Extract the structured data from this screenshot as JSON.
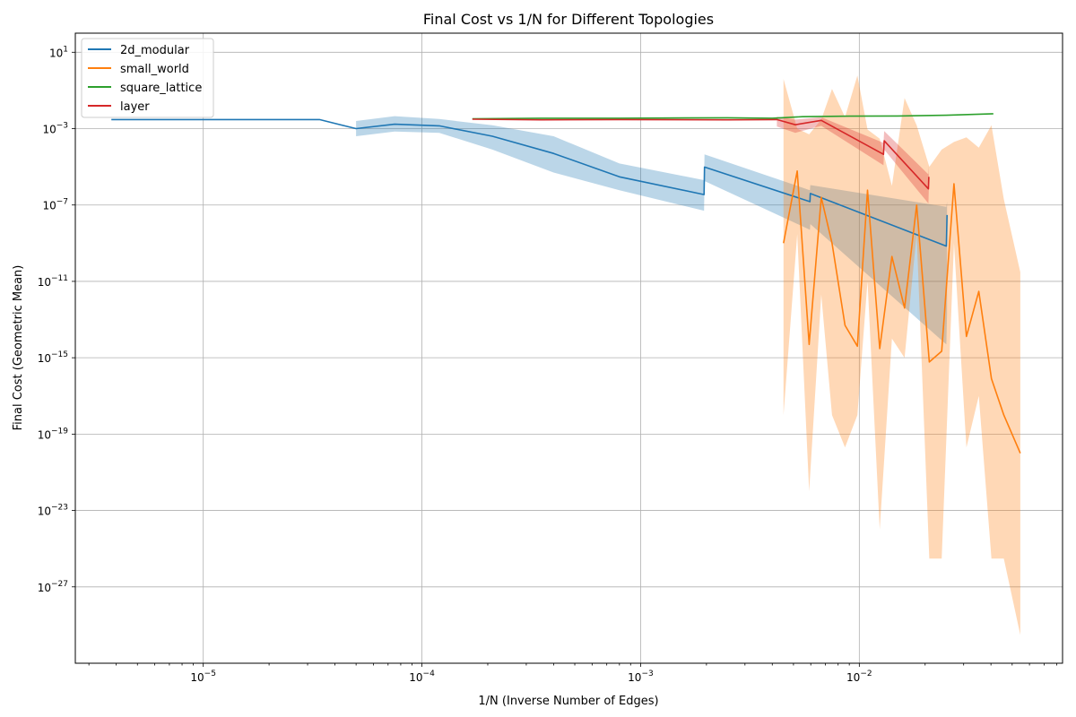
{
  "chart_data": {
    "type": "line",
    "title": "Final Cost vs 1/N for Different Topologies",
    "xlabel": "1/N (Inverse Number of Edges)",
    "ylabel": "Final Cost (Geometric Mean)",
    "xscale": "log",
    "yscale": "log",
    "xlim": [
      2.6e-06,
      0.085
    ],
    "ylim": [
      1e-31,
      100.0
    ],
    "x_ticks": [
      {
        "value": 1e-05,
        "base": "10",
        "exp": "−5"
      },
      {
        "value": 0.0001,
        "base": "10",
        "exp": "−4"
      },
      {
        "value": 0.001,
        "base": "10",
        "exp": "−3"
      },
      {
        "value": 0.01,
        "base": "10",
        "exp": "−2"
      }
    ],
    "y_ticks": [
      {
        "value": 10.0,
        "base": "10",
        "exp": "1"
      },
      {
        "value": 0.001,
        "base": "10",
        "exp": "−3"
      },
      {
        "value": 1e-07,
        "base": "10",
        "exp": "−7"
      },
      {
        "value": 1e-11,
        "base": "10",
        "exp": "−11"
      },
      {
        "value": 1e-15,
        "base": "10",
        "exp": "−15"
      },
      {
        "value": 1e-19,
        "base": "10",
        "exp": "−19"
      },
      {
        "value": 1e-23,
        "base": "10",
        "exp": "−23"
      },
      {
        "value": 1e-27,
        "base": "10",
        "exp": "−27"
      }
    ],
    "grid": true,
    "legend_position": "upper-left",
    "series": [
      {
        "name": "2d_modular",
        "color": "#1f77b4",
        "x": [
          3.8e-06,
          3.4e-05,
          5e-05,
          7.5e-05,
          0.00012,
          0.00021,
          0.0004,
          0.0008,
          0.00195,
          0.00196,
          0.00595,
          0.00597,
          0.025,
          0.0252
        ],
        "y": [
          0.003,
          0.003,
          0.001,
          0.0017,
          0.0014,
          0.0004,
          5e-05,
          3e-06,
          3.5e-07,
          9.7e-06,
          1.5e-07,
          4e-07,
          7e-10,
          3e-08
        ],
        "band_x": [
          5e-05,
          7.5e-05,
          0.00012,
          0.00021,
          0.0004,
          0.0008,
          0.00195,
          0.00196,
          0.00595,
          0.00597,
          0.025,
          0.0252
        ],
        "band_low": [
          0.0004,
          0.0007,
          0.0006,
          8e-05,
          5e-06,
          6e-07,
          5e-08,
          1.8e-06,
          5e-09,
          1e-08,
          5e-15,
          2e-13
        ],
        "band_high": [
          0.0025,
          0.0045,
          0.0032,
          0.0015,
          0.0004,
          1.5e-05,
          2e-06,
          4.5e-05,
          6e-07,
          1.1e-06,
          8e-08,
          1.5e-07
        ]
      },
      {
        "name": "small_world",
        "color": "#ff7f0e",
        "x": [
          0.0045,
          0.0052,
          0.0059,
          0.0067,
          0.0075,
          0.0086,
          0.0098,
          0.0109,
          0.0124,
          0.0141,
          0.0161,
          0.0183,
          0.0209,
          0.0238,
          0.0271,
          0.0309,
          0.0352,
          0.0402,
          0.0458,
          0.0545
        ],
        "y": [
          1e-09,
          6e-06,
          5e-15,
          2.5e-07,
          1e-09,
          5e-14,
          4e-15,
          6e-07,
          3e-15,
          2e-10,
          4e-13,
          1e-07,
          6e-16,
          2.2e-15,
          1.3e-06,
          1.3e-14,
          3e-12,
          8e-17,
          1e-18,
          1e-20
        ],
        "band_low": [
          1e-18,
          3e-09,
          1e-22,
          2e-12,
          1e-18,
          2e-20,
          1e-18,
          1e-11,
          1e-24,
          1e-14,
          1e-15,
          3e-09,
          3e-26,
          3e-26,
          1e-09,
          2e-20,
          1e-17,
          3e-26,
          3e-26,
          3e-30
        ],
        "band_high": [
          0.4,
          0.001,
          0.0005,
          0.003,
          0.12,
          0.004,
          0.6,
          0.0009,
          0.0003,
          1e-06,
          0.04,
          0.0015,
          1e-05,
          8e-05,
          0.0002,
          0.00035,
          0.0001,
          0.0015,
          2e-07,
          3e-11
        ]
      },
      {
        "name": "square_lattice",
        "color": "#2ca02c",
        "x": [
          0.00017,
          0.00035,
          0.0008,
          0.0025,
          0.004,
          0.0055,
          0.009,
          0.015,
          0.025,
          0.041
        ],
        "y": [
          0.0033,
          0.0035,
          0.0035,
          0.0037,
          0.0035,
          0.0042,
          0.0045,
          0.0046,
          0.005,
          0.006
        ]
      },
      {
        "name": "layer",
        "color": "#d62728",
        "x": [
          0.00017,
          0.00035,
          0.0008,
          0.0025,
          0.0042,
          0.0051,
          0.0067,
          0.0129,
          0.013,
          0.0207,
          0.0208
        ],
        "y": [
          0.0031,
          0.0029,
          0.003,
          0.0029,
          0.003,
          0.0016,
          0.0027,
          4.5e-05,
          0.00023,
          7e-07,
          3e-06
        ],
        "band_x": [
          0.0042,
          0.0051,
          0.0067,
          0.0129,
          0.013,
          0.0207,
          0.0208
        ],
        "band_low": [
          0.0013,
          0.0006,
          0.0014,
          1.2e-05,
          8e-05,
          1.2e-07,
          8e-07
        ],
        "band_high": [
          0.0042,
          0.003,
          0.004,
          0.00018,
          0.00075,
          4e-06,
          1.2e-05
        ]
      }
    ]
  }
}
